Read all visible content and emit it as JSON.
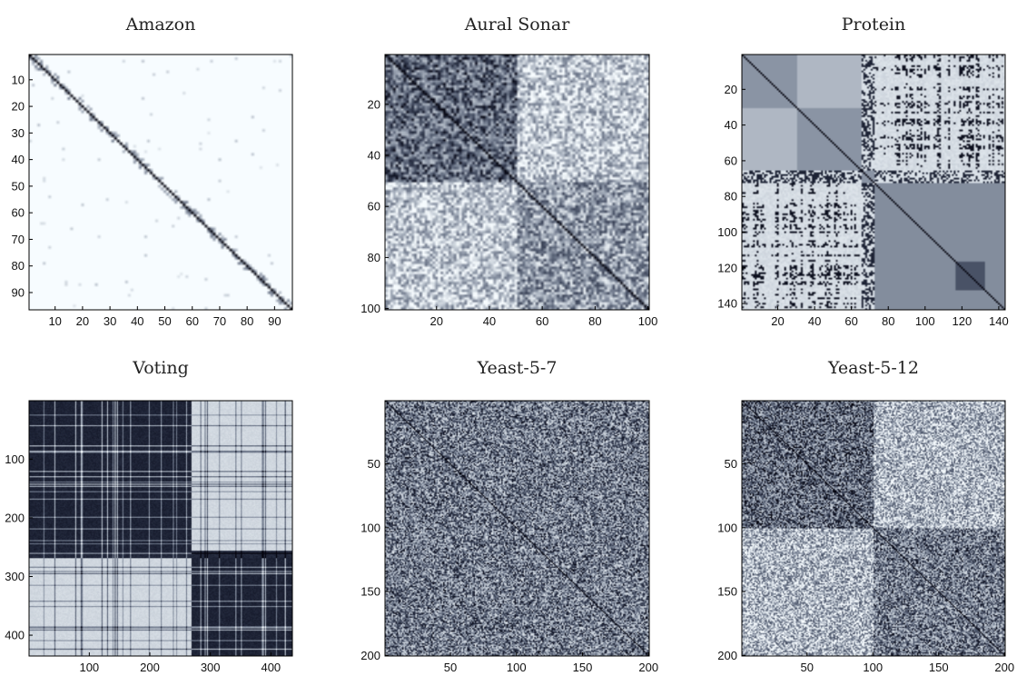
{
  "chart_data": [
    {
      "type": "heatmap",
      "title": "Amazon",
      "n": 96,
      "pattern": "sparse-diagonal",
      "xticks": [
        10,
        20,
        30,
        40,
        50,
        60,
        70,
        80,
        90
      ],
      "yticks": [
        10,
        20,
        30,
        40,
        50,
        60,
        70,
        80,
        90
      ],
      "xlim": [
        0.5,
        96.5
      ],
      "ylim": [
        0.5,
        96.5
      ],
      "colormap": "bone (white = low similarity, black = high)"
    },
    {
      "type": "heatmap",
      "title": "Aural Sonar",
      "n": 100,
      "pattern": "noisy two-group block with diagonal",
      "xticks": [
        20,
        40,
        60,
        80,
        100
      ],
      "yticks": [
        20,
        40,
        60,
        80,
        100
      ],
      "xlim": [
        0.5,
        100.5
      ],
      "ylim": [
        0.5,
        100.5
      ],
      "colormap": "bone (white = low similarity, black = high)"
    },
    {
      "type": "heatmap",
      "title": "Protein",
      "n": 143,
      "pattern": "block-structured",
      "xticks": [
        20,
        40,
        60,
        80,
        100,
        120,
        140
      ],
      "yticks": [
        20,
        40,
        60,
        80,
        100,
        120,
        140
      ],
      "xlim": [
        0.5,
        143.5
      ],
      "ylim": [
        0.5,
        143.5
      ],
      "colormap": "bone (white = low similarity, black = high)"
    },
    {
      "type": "heatmap",
      "title": "Voting",
      "n": 435,
      "pattern": "two-block with banding",
      "xticks": [
        100,
        200,
        300,
        400
      ],
      "yticks": [
        100,
        200,
        300,
        400
      ],
      "xlim": [
        0.5,
        435.5
      ],
      "ylim": [
        0.5,
        435.5
      ],
      "colormap": "bone (white = low similarity, black = high)"
    },
    {
      "type": "heatmap",
      "title": "Yeast-5-7",
      "n": 200,
      "pattern": "uniform noise with diagonal",
      "xticks": [
        50,
        100,
        150,
        200
      ],
      "yticks": [
        50,
        100,
        150,
        200
      ],
      "xlim": [
        0.5,
        200.5
      ],
      "ylim": [
        0.5,
        200.5
      ],
      "colormap": "bone (white = low similarity, black = high)"
    },
    {
      "type": "heatmap",
      "title": "Yeast-5-12",
      "n": 200,
      "pattern": "two noisy blocks with diagonal",
      "xticks": [
        50,
        100,
        150,
        200
      ],
      "yticks": [
        50,
        100,
        150,
        200
      ],
      "xlim": [
        0.5,
        200.5
      ],
      "ylim": [
        0.5,
        200.5
      ],
      "colormap": "bone (white = low similarity, black = high)"
    }
  ]
}
